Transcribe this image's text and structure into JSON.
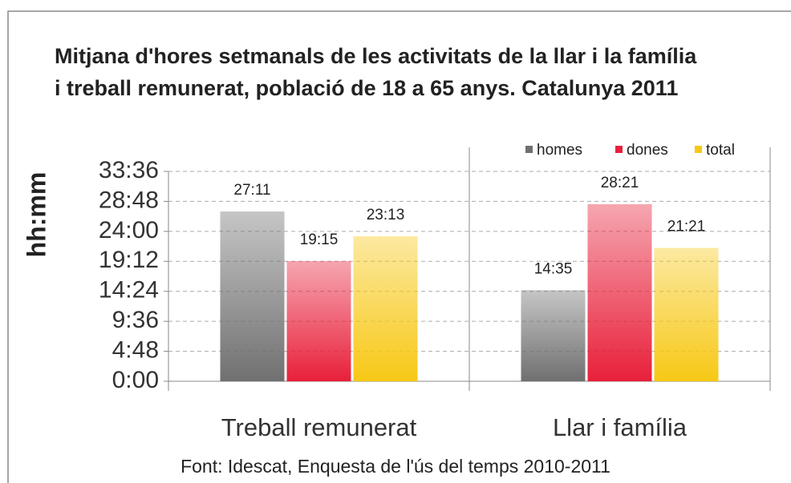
{
  "chart_data": {
    "type": "bar",
    "title": [
      "Mitjana d'hores setmanals de les activitats de la llar i la família",
      "i treball remunerat, població de 18 a 65 anys. Catalunya 2011"
    ],
    "y_label": "hh:mm",
    "source": "Font: Idescat, Enquesta de l'ús del temps 2010-2011",
    "categories": [
      "Treball remunerat",
      "Llar i família"
    ],
    "series": [
      {
        "name": "homes",
        "color": "#707070",
        "values": [
          27.18333,
          14.58333
        ],
        "value_labels": [
          "27:11",
          "14:35"
        ]
      },
      {
        "name": "dones",
        "color": "#e8203a",
        "values": [
          19.25,
          28.35
        ],
        "value_labels": [
          "19:15",
          "28:21"
        ]
      },
      {
        "name": "total",
        "color": "#f7c815",
        "values": [
          23.21667,
          21.35
        ],
        "value_labels": [
          "23:13",
          "21:21"
        ]
      }
    ],
    "ylim": [
      0,
      33.6
    ],
    "yticks": [
      {
        "value": 0,
        "label": "0:00"
      },
      {
        "value": 4.8,
        "label": "4:48"
      },
      {
        "value": 9.6,
        "label": "9:36"
      },
      {
        "value": 14.4,
        "label": "14:24"
      },
      {
        "value": 19.2,
        "label": "19:12"
      },
      {
        "value": 24,
        "label": "24:00"
      },
      {
        "value": 28.8,
        "label": "28:48"
      },
      {
        "value": 33.6,
        "label": "33:36"
      }
    ],
    "grid": true,
    "legend": "top-right"
  }
}
